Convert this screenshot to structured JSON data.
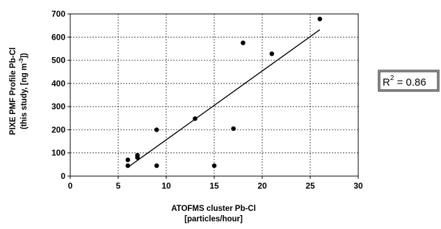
{
  "chart_data": {
    "type": "scatter",
    "title": "",
    "xlabel": "ATOFMS cluster Pb-Cl",
    "xlabel_line2": "[particles/hour]",
    "ylabel": "PIXE PMF Profile Pb-Cl",
    "ylabel_line2_prefix": "(this study, [ng m",
    "ylabel_line2_sup": "-3",
    "ylabel_line2_suffix": "])",
    "xlim": [
      0,
      30
    ],
    "ylim": [
      0,
      700
    ],
    "xticks": [
      0,
      5,
      10,
      15,
      20,
      25,
      30
    ],
    "yticks": [
      0,
      100,
      200,
      300,
      400,
      500,
      600,
      700
    ],
    "grid": true,
    "points": [
      {
        "x": 6,
        "y": 70
      },
      {
        "x": 6,
        "y": 45
      },
      {
        "x": 7,
        "y": 80
      },
      {
        "x": 7,
        "y": 90
      },
      {
        "x": 9,
        "y": 200
      },
      {
        "x": 9,
        "y": 45
      },
      {
        "x": 13,
        "y": 248
      },
      {
        "x": 15,
        "y": 45
      },
      {
        "x": 17,
        "y": 205
      },
      {
        "x": 18,
        "y": 575
      },
      {
        "x": 21,
        "y": 528
      },
      {
        "x": 26,
        "y": 678
      }
    ],
    "trendline": {
      "x": [
        6,
        26
      ],
      "y": [
        38,
        632
      ]
    },
    "annotation": {
      "label": "R",
      "sup": "2",
      "rest": " = 0.86"
    }
  }
}
